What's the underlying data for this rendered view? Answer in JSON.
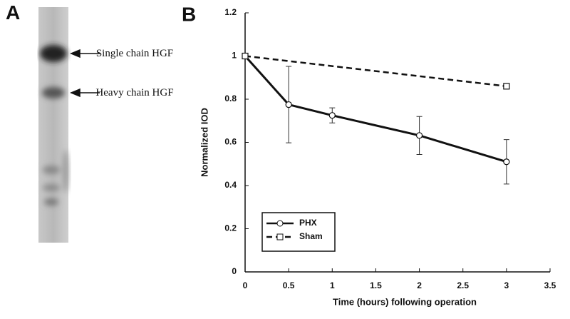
{
  "panel_a": {
    "label": "A",
    "annotations": [
      "Single chain HGF",
      "Heavy chain HGF"
    ]
  },
  "chart_data": {
    "type": "line",
    "panel_label": "B",
    "x_label": "Time (hours) following operation",
    "y_label": "Normalized IOD",
    "xlim": [
      0,
      3.5
    ],
    "xticks": [
      0,
      0.5,
      1,
      1.5,
      2,
      2.5,
      3,
      3.5
    ],
    "ylim": [
      0,
      1.2
    ],
    "yticks": [
      0,
      0.2,
      0.4,
      0.6,
      0.8,
      1,
      1.2
    ],
    "grid": false,
    "legend": "lower left",
    "series": [
      {
        "name": "PHX",
        "color": "#111111",
        "line_style": "solid",
        "marker": "circle",
        "x": [
          0,
          0.5,
          1,
          2,
          3
        ],
        "values": [
          1,
          0.775,
          0.725,
          0.632,
          0.51
        ],
        "errors": [
          null,
          0.177,
          0.035,
          0.088,
          0.103
        ]
      },
      {
        "name": "Sham",
        "color": "#111111",
        "line_style": "dashed",
        "marker": "square",
        "x": [
          0,
          3
        ],
        "values": [
          1,
          0.86
        ],
        "errors": [
          null,
          0.012
        ]
      }
    ]
  }
}
